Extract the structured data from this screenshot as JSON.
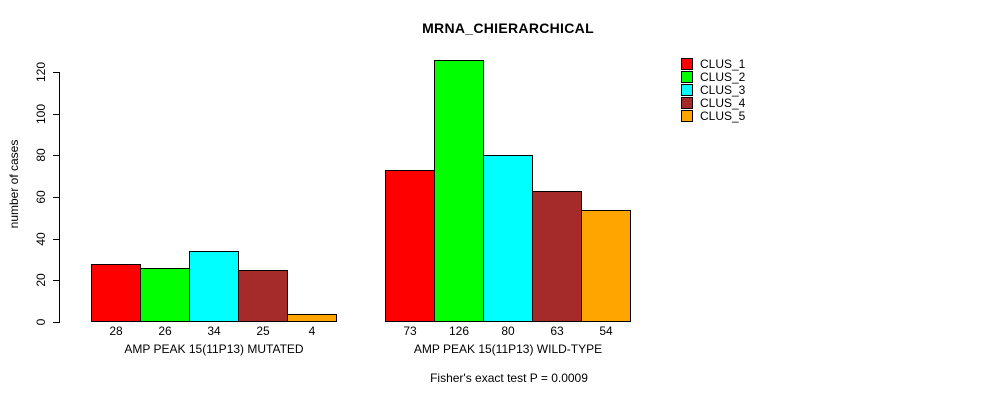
{
  "title": "MRNA_CHIERARCHICAL",
  "subtitle": "Fisher's exact test P = 0.0009",
  "chart_data": {
    "type": "bar",
    "title": "MRNA_CHIERARCHICAL",
    "ylabel": "number of cases",
    "ylim": [
      0,
      130
    ],
    "yticks": [
      0,
      20,
      40,
      60,
      80,
      100,
      120
    ],
    "grid": false,
    "legend_position": "right-inside",
    "series": [
      {
        "name": "CLUS_1",
        "color": "#FF0000",
        "values": [
          28,
          73
        ]
      },
      {
        "name": "CLUS_2",
        "color": "#00FF00",
        "values": [
          26,
          126
        ]
      },
      {
        "name": "CLUS_3",
        "color": "#00FFFF",
        "values": [
          34,
          80
        ]
      },
      {
        "name": "CLUS_4",
        "color": "#A52A2A",
        "values": [
          25,
          63
        ]
      },
      {
        "name": "CLUS_5",
        "color": "#FFA500",
        "values": [
          4,
          54
        ]
      }
    ],
    "groups": [
      {
        "label": "AMP PEAK 15(11P13) MUTATED",
        "values": [
          28,
          26,
          34,
          25,
          4
        ]
      },
      {
        "label": "AMP PEAK 15(11P13) WILD-TYPE",
        "values": [
          73,
          126,
          80,
          63,
          54
        ]
      }
    ],
    "bar_value_labels_shown": true,
    "annotation": "Fisher's exact test P = 0.0009",
    "axis_color": "#000000",
    "background_color": "#FFFFFF"
  }
}
